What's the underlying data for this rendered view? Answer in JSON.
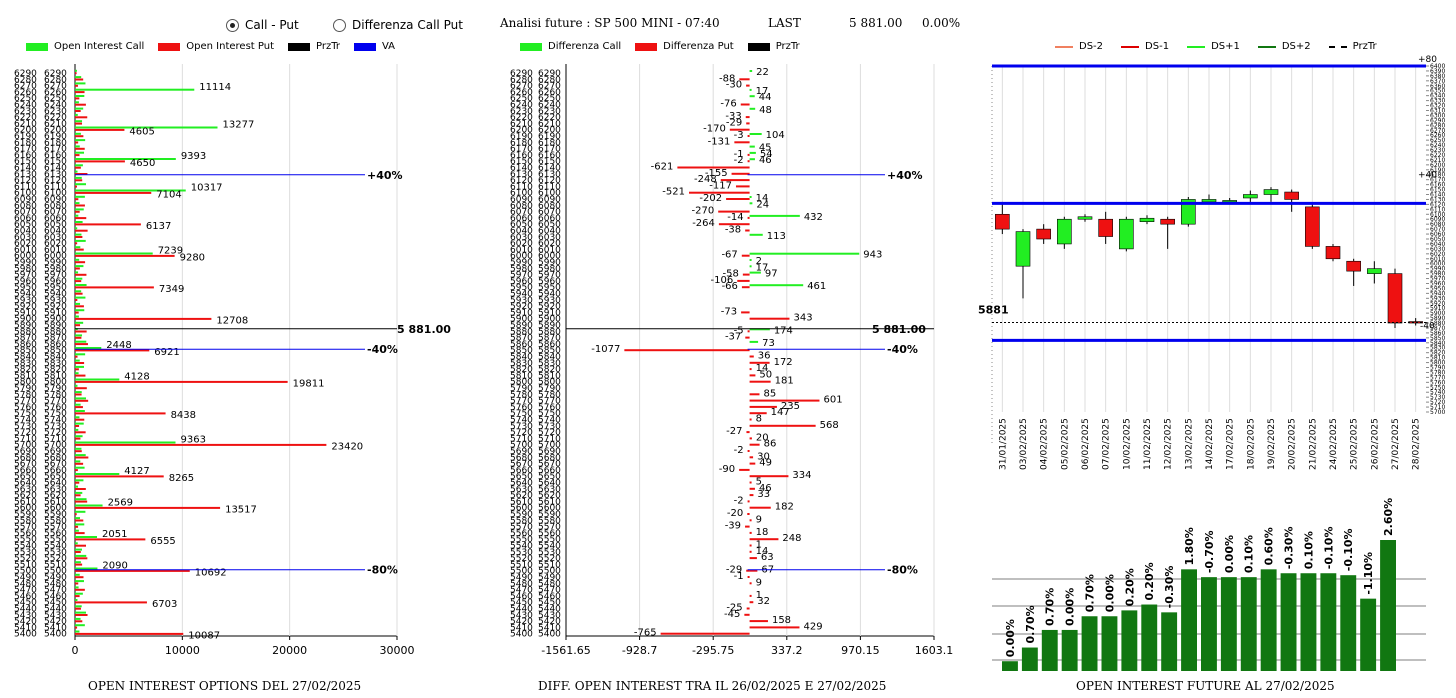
{
  "header": {
    "radio_call_put": "Call - Put",
    "radio_diff": "Differenza Call Put",
    "title": "Analisi future : SP 500 MINI - 07:40",
    "last_label": "LAST",
    "last_value": "5 881.00",
    "last_pct": "0.00%"
  },
  "colors": {
    "call": "#22ee22",
    "put": "#ee1111",
    "prztr": "#000000",
    "va": "#0000ee",
    "bar_green": "#117711"
  },
  "icons": [
    "radio-selected-icon",
    "radio-unselected-icon"
  ],
  "panel1": {
    "legend": [
      "Open Interest Call",
      "Open Interest Put",
      "PrzTr",
      "VA"
    ],
    "footer": "OPEN INTEREST OPTIONS DEL 27/02/2025",
    "x_ticks": [
      "0",
      "10000",
      "20000",
      "30000"
    ],
    "ref_price_label": "5 881.00",
    "band_labels": {
      "p40": "+40%",
      "m40": "-40%",
      "m80": "-80%"
    }
  },
  "panel2": {
    "legend": [
      "Differenza Call",
      "Differenza Put",
      "PrzTr"
    ],
    "footer": "DIFF. OPEN INTEREST TRA IL 26/02/2025 E 27/02/2025",
    "x_ticks": [
      "-1561.65",
      "-928.7",
      "-295.75",
      "337.2",
      "970.15",
      "1603.1"
    ],
    "ref_price_label": "5 881.00",
    "band_labels": {
      "p40": "+40%",
      "m40": "-40%",
      "m80": "-80%"
    }
  },
  "panel3": {
    "legend": [
      "DS-2",
      "DS-1",
      "DS+1",
      "DS+2",
      "PrzTr"
    ],
    "footer": "OPEN INTEREST FUTURE AL 27/02/2025",
    "price_label": "5881",
    "band_labels": {
      "top": "+80",
      "mid": "+40",
      "low": "-40"
    }
  },
  "chart_data": [
    {
      "type": "bar",
      "title": "OPEN INTEREST OPTIONS DEL 27/02/2025",
      "orientation": "horizontal",
      "categories": [
        "6290",
        "6280",
        "6270",
        "6260",
        "6250",
        "6240",
        "6230",
        "6220",
        "6210",
        "6200",
        "6190",
        "6180",
        "6170",
        "6160",
        "6150",
        "6140",
        "6130",
        "6120",
        "6110",
        "6100",
        "6090",
        "6080",
        "6070",
        "6060",
        "6050",
        "6040",
        "6030",
        "6020",
        "6010",
        "6000",
        "5990",
        "5980",
        "5970",
        "5960",
        "5950",
        "5940",
        "5930",
        "5920",
        "5910",
        "5900",
        "5890",
        "5880",
        "5870",
        "5860",
        "5850",
        "5840",
        "5830",
        "5820",
        "5810",
        "5800",
        "5790",
        "5780",
        "5770",
        "5760",
        "5750",
        "5740",
        "5730",
        "5720",
        "5710",
        "5700",
        "5690",
        "5680",
        "5670",
        "5660",
        "5650",
        "5640",
        "5630",
        "5620",
        "5610",
        "5600",
        "5590",
        "5580",
        "5570",
        "5560",
        "5550",
        "5540",
        "5530",
        "5520",
        "5510",
        "5500",
        "5490",
        "5480",
        "5470",
        "5460",
        "5450",
        "5440",
        "5430",
        "5420",
        "5410",
        "5400"
      ],
      "xlim": [
        0,
        30000
      ],
      "series": [
        {
          "name": "Open Interest Call",
          "labeled": {
            "6260": 11114,
            "6200": 13277,
            "6150": 9393,
            "6100": 10317,
            "6000": 7239,
            "5700": 9363,
            "5800": 4128,
            "5650": 4127,
            "5500": 2090,
            "5850": 2448,
            "5550": 2051,
            "5600": 2569
          }
        },
        {
          "name": "Open Interest Put",
          "labeled": {
            "6200": 4605,
            "6150": 4650,
            "6100": 7104,
            "6050": 6137,
            "6000": 9280,
            "5950": 7349,
            "5900": 12708,
            "5850": 6921,
            "5800": 19811,
            "5750": 8438,
            "5700": 23420,
            "5650": 8265,
            "5600": 13517,
            "5550": 6555,
            "5500": 10692,
            "5450": 6703,
            "5400": 10087
          }
        }
      ],
      "price_line": 5881
    },
    {
      "type": "bar",
      "title": "DIFF. OPEN INTEREST TRA IL 26/02/2025 E 27/02/2025",
      "orientation": "horizontal",
      "xlim": [
        -1561.65,
        1603.1
      ],
      "series": [
        {
          "name": "Differenza Call",
          "points": [
            [
              "6290",
              22
            ],
            [
              "6260",
              17
            ],
            [
              "6250",
              44
            ],
            [
              "6230",
              48
            ],
            [
              "6190",
              104
            ],
            [
              "6170",
              45
            ],
            [
              "6160",
              54
            ],
            [
              "6150",
              46
            ],
            [
              "6090",
              14
            ],
            [
              "6080",
              24
            ],
            [
              "6060",
              432
            ],
            [
              "6030",
              113
            ],
            [
              "6000",
              943
            ],
            [
              "5990",
              2
            ],
            [
              "5980",
              17
            ],
            [
              "5970",
              97
            ],
            [
              "5950",
              461
            ],
            [
              "5880",
              174
            ],
            [
              "5860",
              73
            ]
          ]
        },
        {
          "name": "Differenza Put",
          "points": [
            [
              "6280",
              -88
            ],
            [
              "6270",
              -30
            ],
            [
              "6240",
              -76
            ],
            [
              "6220",
              -33
            ],
            [
              "6210",
              -29
            ],
            [
              "6200",
              -170
            ],
            [
              "6190",
              -3
            ],
            [
              "6180",
              -131
            ],
            [
              "6160",
              -1
            ],
            [
              "6150",
              -2
            ],
            [
              "6140",
              -621
            ],
            [
              "6130",
              -155
            ],
            [
              "6120",
              -248
            ],
            [
              "6110",
              -117
            ],
            [
              "6100",
              -521
            ],
            [
              "6090",
              -202
            ],
            [
              "6070",
              -270
            ],
            [
              "6060",
              -14
            ],
            [
              "6050",
              -264
            ],
            [
              "6040",
              -38
            ],
            [
              "6000",
              -67
            ],
            [
              "5970",
              -58
            ],
            [
              "5960",
              -106
            ],
            [
              "5950",
              -66
            ],
            [
              "5910",
              -73
            ],
            [
              "5900",
              343
            ],
            [
              "5880",
              -5
            ],
            [
              "5870",
              -37
            ],
            [
              "5850",
              -1077
            ],
            [
              "5840",
              36
            ],
            [
              "5830",
              172
            ],
            [
              "5820",
              14
            ],
            [
              "5810",
              50
            ],
            [
              "5800",
              181
            ],
            [
              "5780",
              85
            ],
            [
              "5770",
              601
            ],
            [
              "5760",
              235
            ],
            [
              "5750",
              147
            ],
            [
              "5740",
              8
            ],
            [
              "5730",
              568
            ],
            [
              "5720",
              -27
            ],
            [
              "5710",
              20
            ],
            [
              "5700",
              86
            ],
            [
              "5690",
              -2
            ],
            [
              "5680",
              30
            ],
            [
              "5670",
              49
            ],
            [
              "5660",
              -90
            ],
            [
              "5650",
              334
            ],
            [
              "5640",
              5
            ],
            [
              "5630",
              46
            ],
            [
              "5620",
              33
            ],
            [
              "5610",
              -2
            ],
            [
              "5600",
              182
            ],
            [
              "5590",
              -20
            ],
            [
              "5580",
              9
            ],
            [
              "5570",
              -39
            ],
            [
              "5560",
              18
            ],
            [
              "5550",
              248
            ],
            [
              "5540",
              1
            ],
            [
              "5530",
              14
            ],
            [
              "5520",
              63
            ],
            [
              "5500",
              -29
            ],
            [
              "5500",
              67
            ],
            [
              "5490",
              -1
            ],
            [
              "5480",
              9
            ],
            [
              "5460",
              1
            ],
            [
              "5450",
              32
            ],
            [
              "5440",
              -25
            ],
            [
              "5430",
              -45
            ],
            [
              "5420",
              158
            ],
            [
              "5410",
              429
            ],
            [
              "5400",
              -765
            ]
          ]
        }
      ],
      "price_line": 5881
    },
    {
      "type": "candlestick",
      "legend": [
        "DS-2",
        "DS-1",
        "DS+1",
        "DS+2",
        "PrzTr"
      ],
      "categories": [
        "31/01/2025",
        "03/02/2025",
        "04/02/2025",
        "05/02/2025",
        "06/02/2025",
        "07/02/2025",
        "10/02/2025",
        "11/02/2025",
        "12/02/2025",
        "13/02/2025",
        "14/02/2025",
        "17/02/2025",
        "18/02/2025",
        "19/02/2025",
        "20/02/2025",
        "21/02/2025",
        "24/02/2025",
        "25/02/2025",
        "26/02/2025",
        "27/02/2025",
        "28/02/2025"
      ],
      "ylim": [
        5700,
        6400
      ],
      "yticks": [
        "6400",
        "6390",
        "6380",
        "6370",
        "6360",
        "6350",
        "6340",
        "6330",
        "6320",
        "6310",
        "6300",
        "6290",
        "6280",
        "6270",
        "6260",
        "6250",
        "6240",
        "6230",
        "6220",
        "6210",
        "6200",
        "6190",
        "6180",
        "6170",
        "6160",
        "6150",
        "6140",
        "6130",
        "6120",
        "6110",
        "6100",
        "6090",
        "6080",
        "6070",
        "6060",
        "6050",
        "6040",
        "6030",
        "6020",
        "6010",
        "6000",
        "5990",
        "5980",
        "5970",
        "5960",
        "5950",
        "5940",
        "5930",
        "5920",
        "5910",
        "5900",
        "5890",
        "5880",
        "5870",
        "5860",
        "5850",
        "5840",
        "5830",
        "5820",
        "5810",
        "5800",
        "5790",
        "5780",
        "5770",
        "5760",
        "5750",
        "5740",
        "5730",
        "5720",
        "5710",
        "5700"
      ],
      "candles": [
        {
          "o": 6100,
          "c": 6070,
          "h": 6125,
          "l": 6060
        },
        {
          "o": 5995,
          "c": 6065,
          "h": 6070,
          "l": 5930
        },
        {
          "o": 6070,
          "c": 6050,
          "h": 6080,
          "l": 6040
        },
        {
          "o": 6040,
          "c": 6090,
          "h": 6095,
          "l": 6030
        },
        {
          "o": 6090,
          "c": 6095,
          "h": 6100,
          "l": 6085
        },
        {
          "o": 6090,
          "c": 6055,
          "h": 6105,
          "l": 6040
        },
        {
          "o": 6030,
          "c": 6090,
          "h": 6095,
          "l": 6025
        },
        {
          "o": 6085,
          "c": 6092,
          "h": 6098,
          "l": 6080
        },
        {
          "o": 6090,
          "c": 6080,
          "h": 6095,
          "l": 6030
        },
        {
          "o": 6080,
          "c": 6130,
          "h": 6135,
          "l": 6075
        },
        {
          "o": 6125,
          "c": 6130,
          "h": 6140,
          "l": 6120
        },
        {
          "o": 6128,
          "c": 6128,
          "h": 6133,
          "l": 6125
        },
        {
          "o": 6133,
          "c": 6140,
          "h": 6148,
          "l": 6125
        },
        {
          "o": 6140,
          "c": 6150,
          "h": 6155,
          "l": 6125
        },
        {
          "o": 6145,
          "c": 6130,
          "h": 6150,
          "l": 6105
        },
        {
          "o": 6115,
          "c": 6035,
          "h": 6120,
          "l": 6030
        },
        {
          "o": 6035,
          "c": 6010,
          "h": 6040,
          "l": 6005
        },
        {
          "o": 6005,
          "c": 5985,
          "h": 6010,
          "l": 5955
        },
        {
          "o": 5980,
          "c": 5990,
          "h": 6005,
          "l": 5960
        },
        {
          "o": 5980,
          "c": 5880,
          "h": 5990,
          "l": 5870
        },
        {
          "o": 5883,
          "c": 5881,
          "h": 5890,
          "l": 5875
        }
      ],
      "levels": {
        "top": 6400,
        "mid": 6122,
        "price": 5881,
        "low": 5845
      }
    },
    {
      "type": "bar",
      "title": "OPEN INTEREST FUTURE AL 27/02/2025",
      "categories": [
        "31/01/2025",
        "03/02/2025",
        "04/02/2025",
        "05/02/2025",
        "06/02/2025",
        "07/02/2025",
        "10/02/2025",
        "11/02/2025",
        "12/02/2025",
        "13/02/2025",
        "14/02/2025",
        "17/02/2025",
        "18/02/2025",
        "19/02/2025",
        "20/02/2025",
        "21/02/2025",
        "24/02/2025",
        "25/02/2025",
        "26/02/2025",
        "27/02/2025"
      ],
      "labels": [
        "0.00%",
        "0.70%",
        "0.70%",
        "0.00%",
        "0.70%",
        "0.00%",
        "0.20%",
        "0.20%",
        "-0.30%",
        "1.80%",
        "-0.70%",
        "0.00%",
        "0.10%",
        "0.60%",
        "-0.30%",
        "0.10%",
        "-0.10%",
        "-0.10%",
        "-1.10%",
        "2.60%"
      ],
      "values": [
        5,
        12,
        21,
        21,
        28,
        28,
        31,
        34,
        30,
        52,
        48,
        48,
        48,
        52,
        50,
        50,
        50,
        49,
        37,
        67
      ]
    }
  ]
}
